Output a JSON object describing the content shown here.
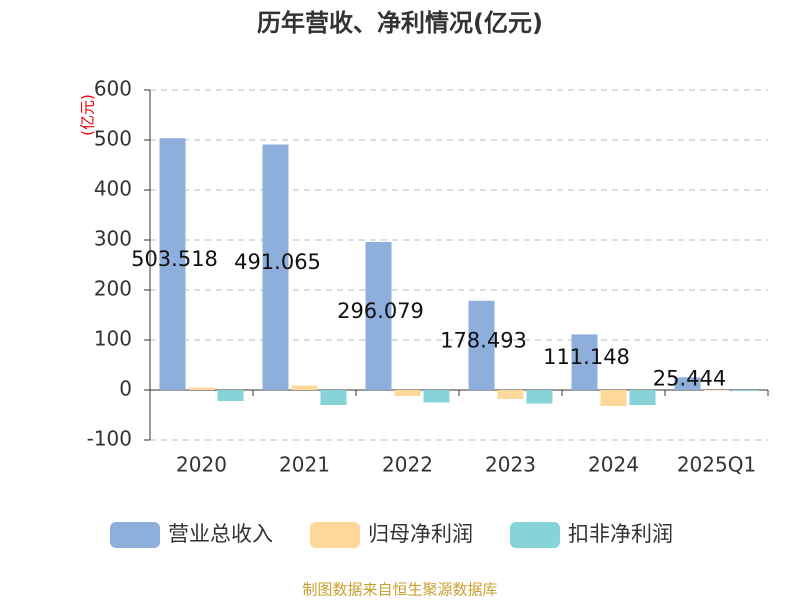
{
  "chart_data": {
    "type": "bar",
    "title": "历年营收、净利情况(亿元)",
    "y_label": "(亿元)",
    "source": "制图数据来自恒生聚源数据库",
    "categories": [
      "2020",
      "2021",
      "2022",
      "2023",
      "2024",
      "2025Q1"
    ],
    "series": [
      {
        "name": "营业总收入",
        "color": "#8eaedb",
        "values": [
          503.518,
          491.065,
          296.079,
          178.493,
          111.148,
          25.444
        ],
        "labels": true
      },
      {
        "name": "归母净利润",
        "color": "#fdd89a",
        "values": [
          5,
          9,
          -12,
          -18,
          -32,
          -1
        ],
        "labels": false
      },
      {
        "name": "扣非净利润",
        "color": "#86d4d8",
        "values": [
          -22,
          -30,
          -25,
          -27,
          -30,
          -2
        ],
        "labels": false
      }
    ],
    "ylim": [
      -100,
      600
    ],
    "yticks": [
      -100,
      0,
      100,
      200,
      300,
      400,
      500,
      600
    ],
    "grid": true
  }
}
